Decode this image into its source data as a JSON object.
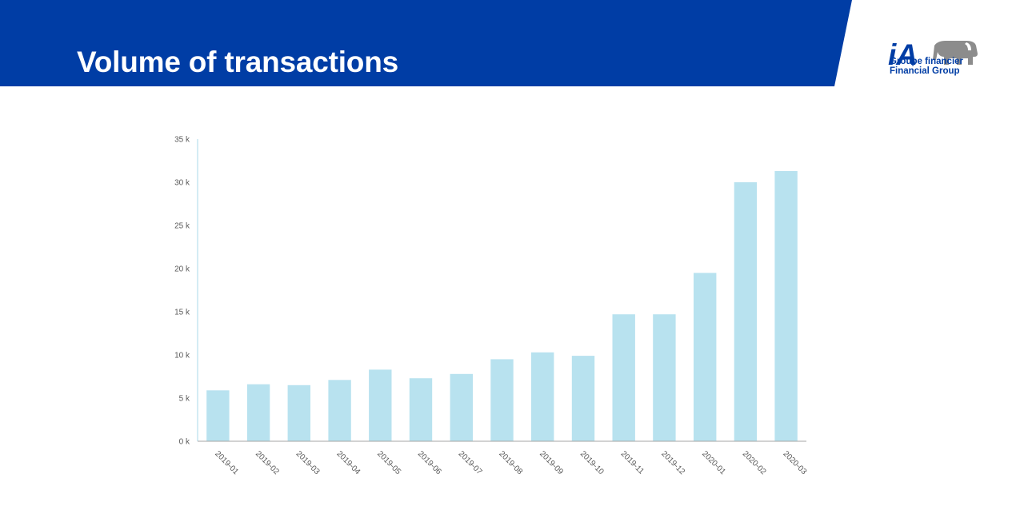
{
  "header": {
    "title": "Volume of transactions",
    "band_color": "#003da5"
  },
  "logo": {
    "mark": "iA",
    "line1": "Groupe financier",
    "line2": "Financial Group",
    "icon": "elephant-icon",
    "color": "#003da5",
    "icon_color": "#8c8c8c"
  },
  "chart_data": {
    "type": "bar",
    "title": "",
    "xlabel": "",
    "ylabel": "",
    "categories": [
      "2019-01",
      "2019-02",
      "2019-03",
      "2019-04",
      "2019-05",
      "2019-06",
      "2019-07",
      "2019-08",
      "2019-09",
      "2019-10",
      "2019-11",
      "2019-12",
      "2020-01",
      "2020-02",
      "2020-03"
    ],
    "values": [
      5900,
      6600,
      6500,
      7100,
      8300,
      7300,
      7800,
      9500,
      10300,
      9900,
      14700,
      14700,
      19500,
      30000,
      31300
    ],
    "ylim": [
      0,
      35000
    ],
    "yticks": [
      {
        "value": 0,
        "label": "0 k"
      },
      {
        "value": 5000,
        "label": "5 k"
      },
      {
        "value": 10000,
        "label": "10 k"
      },
      {
        "value": 15000,
        "label": "15 k"
      },
      {
        "value": 20000,
        "label": "20 k"
      },
      {
        "value": 25000,
        "label": "25 k"
      },
      {
        "value": 30000,
        "label": "30 k"
      },
      {
        "value": 35000,
        "label": "35 k"
      }
    ],
    "bar_color": "#b8e2ef",
    "grid": false,
    "legend": "none"
  }
}
